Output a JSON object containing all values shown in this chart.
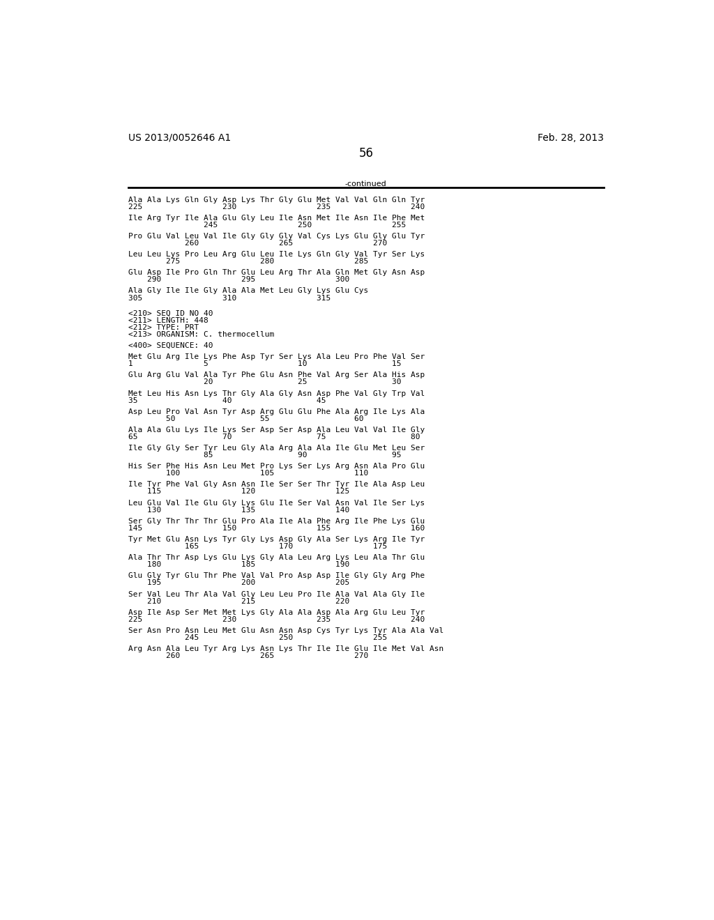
{
  "header_left": "US 2013/0052646 A1",
  "header_right": "Feb. 28, 2013",
  "page_number": "56",
  "continued_label": "-continued",
  "background_color": "#ffffff",
  "text_color": "#000000",
  "font_size": 8.0,
  "mono_font": "DejaVu Sans Mono",
  "header_font_size": 10,
  "page_num_font_size": 12,
  "lines": [
    "Ala Ala Lys Gln Gly Asp Lys Thr Gly Glu Met Val Val Gln Gln Tyr",
    "225                 230                 235                 240",
    "",
    "Ile Arg Tyr Ile Ala Glu Gly Leu Ile Asn Met Ile Asn Ile Phe Met",
    "                245                 250                 255",
    "",
    "Pro Glu Val Leu Val Ile Gly Gly Gly Val Cys Lys Glu Gly Glu Tyr",
    "            260                 265                 270",
    "",
    "Leu Leu Lys Pro Leu Arg Glu Leu Ile Lys Gln Gly Val Tyr Ser Lys",
    "        275                 280                 285",
    "",
    "Glu Asp Ile Pro Gln Thr Glu Leu Arg Thr Ala Gln Met Gly Asn Asp",
    "    290                 295                 300",
    "",
    "Ala Gly Ile Ile Gly Ala Ala Met Leu Gly Lys Glu Cys",
    "305                 310                 315",
    "",
    "",
    "<210> SEQ ID NO 40",
    "<211> LENGTH: 448",
    "<212> TYPE: PRT",
    "<213> ORGANISM: C. thermocellum",
    "",
    "<400> SEQUENCE: 40",
    "",
    "Met Glu Arg Ile Lys Phe Asp Tyr Ser Lys Ala Leu Pro Phe Val Ser",
    "1               5                   10                  15",
    "",
    "Glu Arg Glu Val Ala Tyr Phe Glu Asn Phe Val Arg Ser Ala His Asp",
    "                20                  25                  30",
    "",
    "Met Leu His Asn Lys Thr Gly Ala Gly Asn Asp Phe Val Gly Trp Val",
    "35                  40                  45",
    "",
    "Asp Leu Pro Val Asn Tyr Asp Arg Glu Glu Phe Ala Arg Ile Lys Ala",
    "        50                  55                  60",
    "",
    "Ala Ala Glu Lys Ile Lys Ser Asp Ser Asp Ala Leu Val Val Ile Gly",
    "65                  70                  75                  80",
    "",
    "Ile Gly Gly Ser Tyr Leu Gly Ala Arg Ala Ala Ile Glu Met Leu Ser",
    "                85                  90                  95",
    "",
    "His Ser Phe His Asn Leu Met Pro Lys Ser Lys Arg Asn Ala Pro Glu",
    "        100                 105                 110",
    "",
    "Ile Tyr Phe Val Gly Asn Asn Ile Ser Ser Thr Tyr Ile Ala Asp Leu",
    "    115                 120                 125",
    "",
    "Leu Glu Val Ile Glu Gly Lys Glu Ile Ser Val Asn Val Ile Ser Lys",
    "    130                 135                 140",
    "",
    "Ser Gly Thr Thr Thr Glu Pro Ala Ile Ala Phe Arg Ile Phe Lys Glu",
    "145                 150                 155                 160",
    "",
    "Tyr Met Glu Asn Lys Tyr Gly Lys Asp Gly Ala Ser Lys Arg Ile Tyr",
    "            165                 170                 175",
    "",
    "Ala Thr Thr Asp Lys Glu Lys Gly Ala Leu Arg Lys Leu Ala Thr Glu",
    "    180                 185                 190",
    "",
    "Glu Gly Tyr Glu Thr Phe Val Val Pro Asp Asp Ile Gly Gly Arg Phe",
    "    195                 200                 205",
    "",
    "Ser Val Leu Thr Ala Val Gly Leu Leu Pro Ile Ala Val Ala Gly Ile",
    "    210                 215                 220",
    "",
    "Asp Ile Asp Ser Met Met Lys Gly Ala Ala Asp Ala Arg Glu Leu Tyr",
    "225                 230                 235                 240",
    "",
    "Ser Asn Pro Asn Leu Met Glu Asn Asn Asp Cys Tyr Lys Tyr Ala Ala Val",
    "            245                 250                 255",
    "",
    "Arg Asn Ala Leu Tyr Arg Lys Asn Lys Thr Ile Ile Glu Ile Met Val Asn",
    "        260                 265                 270"
  ]
}
